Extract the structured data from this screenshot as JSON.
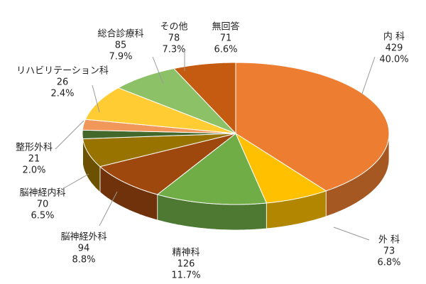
{
  "chart_data": {
    "type": "pie",
    "categories": [
      "内 科",
      "外 科",
      "精神科",
      "脳神経外科",
      "脳神経内科",
      "整形外科",
      "リハビリテーション科",
      "総合診療科",
      "その他",
      "無回答"
    ],
    "values": [
      429,
      73,
      126,
      94,
      70,
      21,
      26,
      85,
      78,
      71
    ],
    "percent_labels": [
      "40.0%",
      "6.8%",
      "11.7%",
      "8.8%",
      "6.5%",
      "2.0%",
      "2.4%",
      "7.9%",
      "7.3%",
      "6.6%"
    ],
    "colors": [
      "#ED7D31",
      "#FFC000",
      "#70AD47",
      "#9E480E",
      "#997300",
      "#43682B",
      "#F1975A",
      "#FFCD33",
      "#8CC168",
      "#C55A11"
    ]
  }
}
